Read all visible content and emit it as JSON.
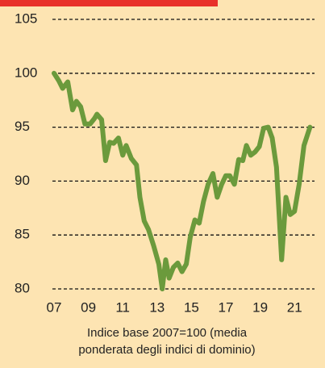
{
  "chart_data": {
    "type": "line",
    "caption_lines": [
      "Indice base 2007=100 (media",
      "ponderata degli indici di dominio)"
    ],
    "color": "#6b9a3c",
    "x": [
      2007.0,
      2007.28,
      2007.5,
      2007.8,
      2008.08,
      2008.3,
      2008.55,
      2008.8,
      2009.1,
      2009.35,
      2009.5,
      2009.77,
      2010.0,
      2010.24,
      2010.47,
      2010.75,
      2011.0,
      2011.2,
      2011.5,
      2011.8,
      2012.0,
      2012.25,
      2012.5,
      2012.8,
      2013.1,
      2013.3,
      2013.5,
      2013.7,
      2013.95,
      2014.2,
      2014.45,
      2014.7,
      2014.93,
      2015.2,
      2015.45,
      2015.7,
      2015.97,
      2016.25,
      2016.5,
      2016.76,
      2017.0,
      2017.23,
      2017.5,
      2017.75,
      2017.99,
      2018.2,
      2018.45,
      2018.7,
      2018.95,
      2019.2,
      2019.47,
      2019.7,
      2019.95,
      2020.25,
      2020.5,
      2020.75,
      2021.0,
      2021.27,
      2021.55,
      2021.9
    ],
    "values": [
      100,
      99.3,
      98.6,
      99.2,
      96.6,
      97.4,
      96.9,
      95.3,
      95.3,
      95.8,
      96.2,
      95.7,
      91.9,
      93.6,
      93.5,
      94.0,
      92.4,
      93.3,
      92.1,
      91.5,
      88.5,
      86.3,
      85.5,
      84.0,
      82.3,
      80.0,
      82.7,
      81.0,
      82.0,
      82.4,
      81.6,
      82.3,
      84.8,
      86.4,
      86.1,
      88.1,
      89.7,
      90.7,
      88.5,
      89.7,
      90.5,
      90.5,
      89.7,
      92.0,
      91.9,
      93.3,
      92.4,
      92.7,
      93.2,
      94.9,
      95.0,
      94.0,
      91.3,
      82.7,
      88.5,
      86.9,
      87.2,
      89.7,
      93.3,
      95.0
    ],
    "xlim": [
      2007,
      2022
    ],
    "ylim": [
      80,
      105
    ],
    "yticks": [
      80,
      85,
      90,
      95,
      100,
      105
    ],
    "xticks": [
      {
        "value": 2007,
        "label": "07"
      },
      {
        "value": 2009,
        "label": "09"
      },
      {
        "value": 2011,
        "label": "11"
      },
      {
        "value": 2013,
        "label": "13"
      },
      {
        "value": 2015,
        "label": "15"
      },
      {
        "value": 2017,
        "label": "17"
      },
      {
        "value": 2019,
        "label": "19"
      },
      {
        "value": 2021,
        "label": "21"
      }
    ],
    "grid": true
  }
}
